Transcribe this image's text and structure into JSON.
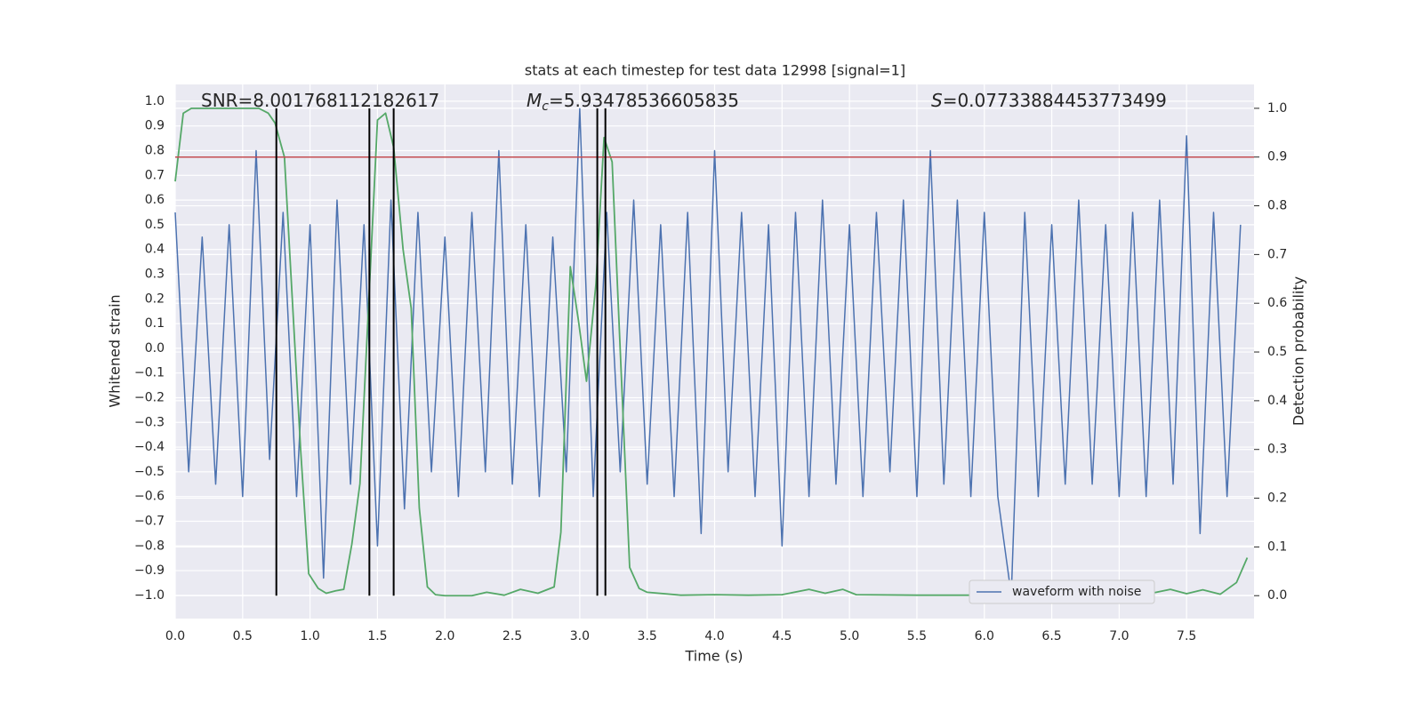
{
  "chart_data": {
    "type": "line",
    "title": "stats at each timestep for test data 12998 [signal=1]",
    "xlabel": "Time (s)",
    "ylabel": "Whitened strain",
    "y2label": "Detection probability",
    "annotations": [
      {
        "text": "SNR=8.001768112182617"
      },
      {
        "symbol": "M",
        "subscript": "c",
        "text": "=5.93478536605835"
      },
      {
        "symbol": "S",
        "text": "=0.07733884453773499"
      }
    ],
    "xlim": [
      0,
      8.0
    ],
    "ylim": [
      -1.094,
      1.068
    ],
    "y2lim": [
      -0.047,
      1.049
    ],
    "xticks": [
      {
        "value": 0,
        "label": "0.0"
      },
      0.5,
      {
        "value": 1,
        "label": "1.0"
      },
      1.5,
      {
        "value": 2,
        "label": "2.0"
      },
      2.5,
      {
        "value": 3,
        "label": "3.0"
      },
      3.5,
      {
        "value": 4,
        "label": "4.0"
      },
      4.5,
      {
        "value": 5,
        "label": "5.0"
      },
      5.5,
      {
        "value": 6,
        "label": "6.0"
      },
      6.5,
      {
        "value": 7,
        "label": "7.0"
      },
      7.5
    ],
    "yticks": [
      {
        "value": -1,
        "label": "−1.0"
      },
      {
        "value": -0.9,
        "label": "−0.9"
      },
      {
        "value": -0.8,
        "label": "−0.8"
      },
      {
        "value": -0.7,
        "label": "−0.7"
      },
      {
        "value": -0.6,
        "label": "−0.6"
      },
      {
        "value": -0.5,
        "label": "−0.5"
      },
      {
        "value": -0.4,
        "label": "−0.4"
      },
      {
        "value": -0.3,
        "label": "−0.3"
      },
      {
        "value": -0.2,
        "label": "−0.2"
      },
      {
        "value": -0.1,
        "label": "−0.1"
      },
      {
        "value": 0,
        "label": "0.0"
      },
      0.1,
      0.2,
      0.3,
      0.4,
      0.5,
      0.6,
      0.7,
      0.8,
      0.9,
      {
        "value": 1,
        "label": "1.0"
      }
    ],
    "y2ticks": [
      {
        "value": 0,
        "label": "0.0"
      },
      0.1,
      0.2,
      0.3,
      0.4,
      0.5,
      0.6,
      0.7,
      0.8,
      0.9,
      {
        "value": 1,
        "label": "1.0"
      }
    ],
    "grid": true,
    "legend": "lower right",
    "hline": {
      "value": 0.9,
      "axis": "y2",
      "color": "#c44e52"
    },
    "vlines": {
      "x": [
        0.75,
        1.44,
        1.62,
        3.13,
        3.19
      ],
      "ymin": 0,
      "ymax": 1,
      "axis": "y2",
      "color": "#000000"
    },
    "series": [
      {
        "name": "waveform with noise",
        "color": "#4c72b0",
        "x": [
          0.0,
          0.1,
          0.2,
          0.3,
          0.4,
          0.5,
          0.6,
          0.7,
          0.8,
          0.9,
          1.0,
          1.1,
          1.2,
          1.3,
          1.4,
          1.5,
          1.6,
          1.7,
          1.8,
          1.9,
          2.0,
          2.1,
          2.2,
          2.3,
          2.4,
          2.5,
          2.6,
          2.7,
          2.8,
          2.9,
          3.0,
          3.1,
          3.2,
          3.3,
          3.4,
          3.5,
          3.6,
          3.7,
          3.8,
          3.9,
          4.0,
          4.1,
          4.2,
          4.3,
          4.4,
          4.5,
          4.6,
          4.7,
          4.8,
          4.9,
          5.0,
          5.1,
          5.2,
          5.3,
          5.4,
          5.5,
          5.6,
          5.7,
          5.8,
          5.9,
          6.0,
          6.1,
          6.2,
          6.3,
          6.4,
          6.5,
          6.6,
          6.7,
          6.8,
          6.9,
          7.0,
          7.1,
          7.2,
          7.3,
          7.4,
          7.5,
          7.6,
          7.7,
          7.8,
          7.9
        ],
        "values": [
          0.55,
          -0.5,
          0.45,
          -0.55,
          0.5,
          -0.6,
          0.8,
          -0.45,
          0.55,
          -0.6,
          0.5,
          -0.93,
          0.6,
          -0.55,
          0.5,
          -0.8,
          0.6,
          -0.65,
          0.55,
          -0.5,
          0.45,
          -0.6,
          0.55,
          -0.5,
          0.8,
          -0.55,
          0.5,
          -0.6,
          0.45,
          -0.5,
          0.97,
          -0.6,
          0.55,
          -0.5,
          0.6,
          -0.55,
          0.5,
          -0.6,
          0.55,
          -0.75,
          0.8,
          -0.5,
          0.55,
          -0.6,
          0.5,
          -0.8,
          0.55,
          -0.6,
          0.6,
          -0.55,
          0.5,
          -0.6,
          0.55,
          -0.5,
          0.6,
          -0.6,
          0.8,
          -0.55,
          0.6,
          -0.6,
          0.55,
          -0.6,
          -1.0,
          0.55,
          -0.6,
          0.5,
          -0.55,
          0.6,
          -0.55,
          0.5,
          -0.6,
          0.55,
          -0.6,
          0.6,
          -0.55,
          0.86,
          -0.75,
          0.55,
          -0.6,
          0.5
        ]
      },
      {
        "color": "#55a868",
        "axis": "y2",
        "x": [
          0.0,
          0.06,
          0.12,
          0.19,
          0.25,
          0.31,
          0.37,
          0.44,
          0.5,
          0.56,
          0.62,
          0.69,
          0.74,
          0.81,
          0.87,
          0.93,
          0.99,
          1.06,
          1.12,
          1.19,
          1.25,
          1.31,
          1.37,
          1.44,
          1.5,
          1.56,
          1.62,
          1.69,
          1.75,
          1.81,
          1.87,
          1.93,
          2.0,
          2.2,
          2.31,
          2.44,
          2.56,
          2.69,
          2.81,
          2.86,
          2.93,
          2.99,
          3.05,
          3.12,
          3.18,
          3.24,
          3.31,
          3.37,
          3.44,
          3.5,
          3.75,
          4.0,
          4.25,
          4.5,
          4.7,
          4.82,
          4.95,
          5.05,
          5.5,
          6.0,
          6.5,
          7.0,
          7.12,
          7.24,
          7.38,
          7.5,
          7.62,
          7.75,
          7.87,
          7.95
        ],
        "values": [
          0.85,
          0.99,
          1.0,
          1.0,
          1.0,
          1.0,
          1.0,
          1.0,
          1.0,
          1.0,
          1.0,
          0.99,
          0.97,
          0.9,
          0.6,
          0.3,
          0.045,
          0.015,
          0.005,
          0.01,
          0.013,
          0.106,
          0.23,
          0.63,
          0.976,
          0.99,
          0.92,
          0.71,
          0.59,
          0.18,
          0.018,
          0.002,
          0.0,
          0.0,
          0.007,
          0.001,
          0.013,
          0.005,
          0.018,
          0.13,
          0.675,
          0.565,
          0.44,
          0.64,
          0.94,
          0.89,
          0.44,
          0.058,
          0.015,
          0.007,
          0.001,
          0.002,
          0.001,
          0.002,
          0.013,
          0.005,
          0.013,
          0.002,
          0.001,
          0.001,
          0.001,
          0.003,
          0.015,
          0.005,
          0.013,
          0.004,
          0.012,
          0.003,
          0.027,
          0.078
        ]
      }
    ]
  }
}
